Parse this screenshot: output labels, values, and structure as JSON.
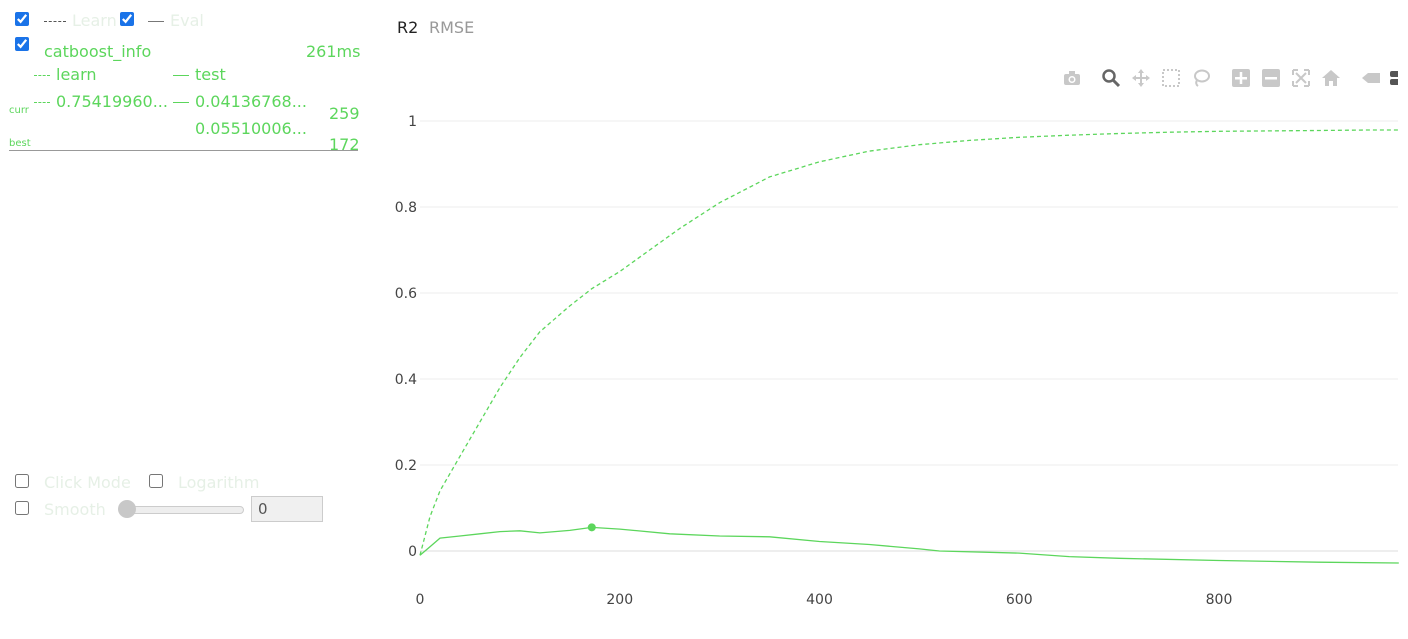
{
  "legend": {
    "learn_toggle": "Learn",
    "eval_toggle": "Eval"
  },
  "run": {
    "name": "catboost_info",
    "time": "261ms",
    "col_learn": "learn",
    "col_test": "test",
    "curr_label": "curr",
    "best_label": "best",
    "curr_learn": "0.75419960...",
    "curr_test": "0.04136768...",
    "curr_iter": "259",
    "best_test": "0.05510006...",
    "best_iter": "172"
  },
  "controls": {
    "click_mode": "Click Mode",
    "logarithm": "Logarithm",
    "smooth": "Smooth",
    "smooth_value": "0"
  },
  "tabs": [
    {
      "label": "R2",
      "active": true
    },
    {
      "label": "RMSE",
      "active": false
    }
  ],
  "toolbar": [
    "camera-icon",
    "zoom-icon",
    "pan-icon",
    "box-select-icon",
    "lasso-icon",
    "zoom-in-icon",
    "zoom-out-icon",
    "autoscale-icon",
    "reset-axes-icon",
    "spike-lines-icon",
    "hover-compare-icon"
  ],
  "colors": {
    "series": "#5cd65c",
    "grid": "#eeeeee"
  },
  "chart_data": {
    "type": "line",
    "xlim": [
      0,
      980
    ],
    "ylim": [
      -0.03,
      1.0
    ],
    "xticks": [
      0,
      200,
      400,
      600,
      800
    ],
    "yticks": [
      0,
      0.2,
      0.4,
      0.6,
      0.8,
      1
    ],
    "ytick_labels": [
      "0",
      "0.2",
      "0.4",
      "0.6",
      "0.8",
      "1"
    ],
    "grid": true,
    "series": [
      {
        "name": "learn",
        "style": "dashed",
        "x": [
          0,
          10,
          20,
          40,
          60,
          80,
          100,
          120,
          150,
          172,
          200,
          230,
          260,
          300,
          350,
          400,
          450,
          500,
          550,
          600,
          650,
          700,
          750,
          800,
          850,
          900,
          950,
          980
        ],
        "y": [
          -0.01,
          0.08,
          0.14,
          0.22,
          0.3,
          0.38,
          0.45,
          0.51,
          0.57,
          0.61,
          0.65,
          0.7,
          0.75,
          0.81,
          0.87,
          0.905,
          0.93,
          0.945,
          0.955,
          0.962,
          0.967,
          0.971,
          0.974,
          0.976,
          0.977,
          0.978,
          0.979,
          0.979
        ]
      },
      {
        "name": "test",
        "style": "solid",
        "x": [
          0,
          10,
          20,
          40,
          60,
          80,
          100,
          120,
          150,
          172,
          200,
          250,
          300,
          350,
          400,
          450,
          500,
          520,
          600,
          650,
          700,
          800,
          900,
          980
        ],
        "y": [
          -0.01,
          0.01,
          0.03,
          0.035,
          0.04,
          0.045,
          0.047,
          0.042,
          0.048,
          0.055,
          0.051,
          0.04,
          0.035,
          0.033,
          0.022,
          0.015,
          0.005,
          0.0,
          -0.005,
          -0.013,
          -0.017,
          -0.022,
          -0.026,
          -0.028
        ]
      }
    ],
    "best_point": {
      "x": 172,
      "y": 0.055
    }
  }
}
